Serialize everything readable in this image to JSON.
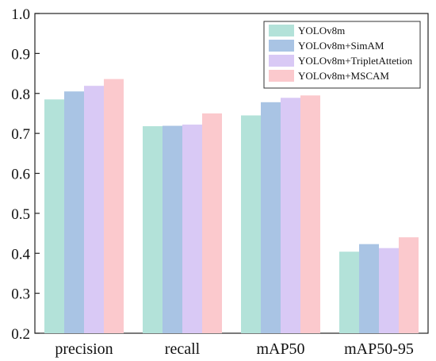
{
  "chart_data": {
    "type": "bar",
    "categories": [
      "precision",
      "recall",
      "mAP50",
      "mAP50-95"
    ],
    "series": [
      {
        "name": "YOLOv8m",
        "values": [
          0.785,
          0.718,
          0.745,
          0.404
        ],
        "color": "#b3e2d9"
      },
      {
        "name": "YOLOv8m+SimAM",
        "values": [
          0.805,
          0.719,
          0.778,
          0.423
        ],
        "color": "#a9c4e4"
      },
      {
        "name": "YOLOv8m+TripletAttetion",
        "values": [
          0.819,
          0.722,
          0.789,
          0.413
        ],
        "color": "#d9c9f5"
      },
      {
        "name": "YOLOv8m+MSCAM",
        "values": [
          0.836,
          0.75,
          0.795,
          0.44
        ],
        "color": "#fbc9cd"
      }
    ],
    "ylim": [
      0.2,
      1.0
    ],
    "yticks": [
      "0.2",
      "0.3",
      "0.4",
      "0.5",
      "0.6",
      "0.7",
      "0.8",
      "0.9",
      "1.0"
    ],
    "title": "",
    "xlabel": "",
    "ylabel": "",
    "grid": false,
    "legend_position": "top-right"
  }
}
